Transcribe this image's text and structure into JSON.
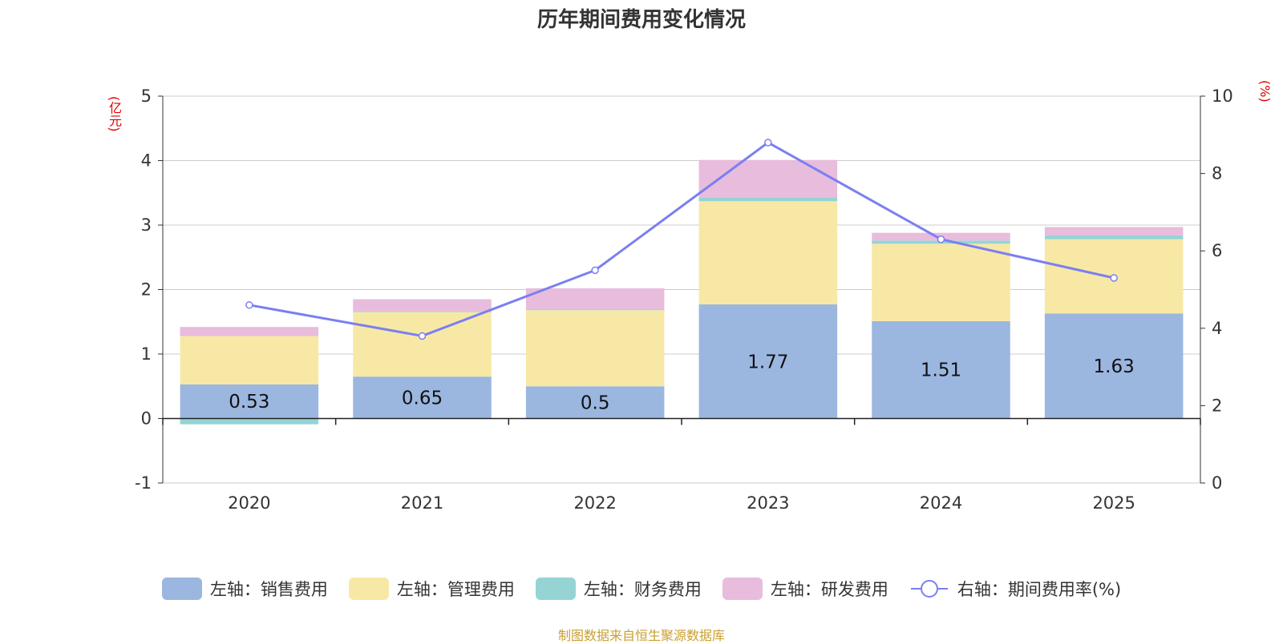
{
  "chart_data": {
    "type": "bar",
    "title": "历年期间费用变化情况",
    "left_unit": "(亿元)",
    "right_unit": "(%)",
    "categories": [
      "2020",
      "2021",
      "2022",
      "2023",
      "2024",
      "2025"
    ],
    "series": [
      {
        "name": "左轴：销售费用",
        "axis": "left",
        "color": "#9bb7e0",
        "values": [
          0.53,
          0.65,
          0.5,
          1.77,
          1.51,
          1.63
        ],
        "show_labels": true
      },
      {
        "name": "左轴：管理费用",
        "axis": "left",
        "color": "#f8e8a6",
        "values": [
          0.75,
          1.0,
          1.18,
          1.6,
          1.2,
          1.15
        ]
      },
      {
        "name": "左轴：财务费用",
        "axis": "left",
        "color": "#96d4d4",
        "values": [
          -0.09,
          0.01,
          0.01,
          0.06,
          0.05,
          0.06
        ]
      },
      {
        "name": "左轴：研发费用",
        "axis": "left",
        "color": "#e8bcdc",
        "values": [
          0.14,
          0.19,
          0.33,
          0.58,
          0.12,
          0.13
        ]
      }
    ],
    "line_series": {
      "name": "右轴：期间费用率(%)",
      "axis": "right",
      "color": "#7b7ff0",
      "values": [
        4.6,
        3.8,
        5.5,
        8.8,
        6.3,
        5.3
      ]
    },
    "left_ylim": [
      -1,
      5
    ],
    "left_ticks": [
      -1,
      0,
      1,
      2,
      3,
      4,
      5
    ],
    "right_ylim": [
      0,
      10
    ],
    "right_ticks": [
      0,
      2,
      4,
      6,
      8,
      10
    ],
    "grid": true,
    "legend_position": "bottom"
  },
  "source": "制图数据来自恒生聚源数据库"
}
